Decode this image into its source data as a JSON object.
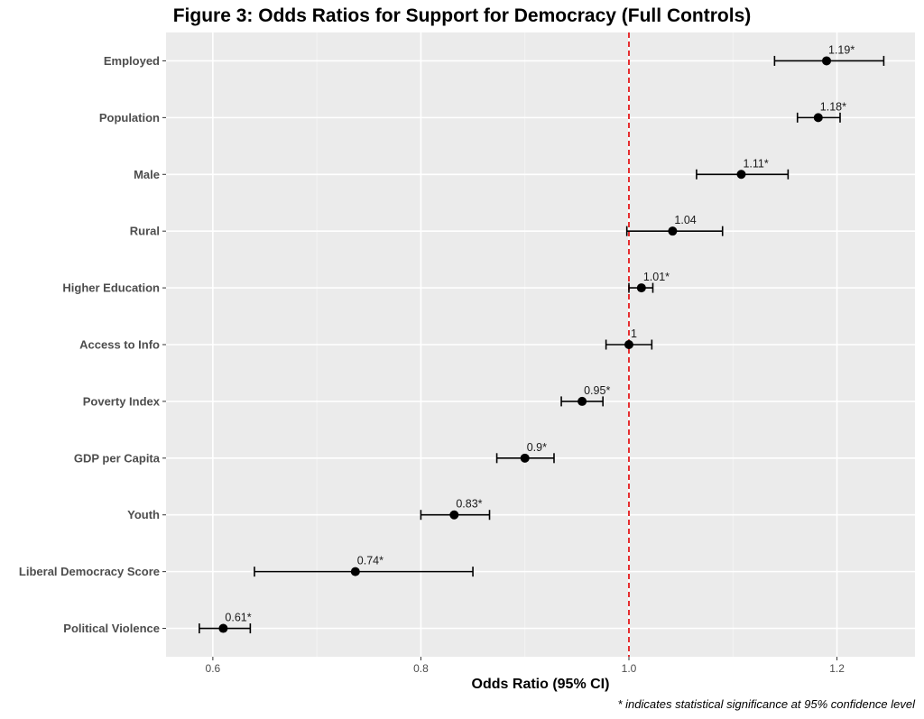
{
  "chart_data": {
    "type": "scatter",
    "subtype": "forest-plot",
    "title": "Figure 3: Odds Ratios for Support for Democracy (Full Controls)",
    "xlabel": "Odds Ratio (95% CI)",
    "ylabel": "",
    "xlim": [
      0.555,
      1.275
    ],
    "xticks": [
      0.6,
      0.8,
      1.0,
      1.2
    ],
    "xtick_labels": [
      "0.6",
      "0.8",
      "1.0",
      "1.2"
    ],
    "reference_line": 1.0,
    "reference_line_color": "#e41a1c",
    "grid": true,
    "panel_background": "#ebebeb",
    "footnote": "* indicates statistical significance at 95% confidence level",
    "categories": [
      "Employed",
      "Population",
      "Male",
      "Rural",
      "Higher Education",
      "Access to Info",
      "Poverty Index",
      "GDP per Capita",
      "Youth",
      "Liberal Democracy Score",
      "Political Violence"
    ],
    "values": [
      1.19,
      1.182,
      1.108,
      1.042,
      1.012,
      1.0,
      0.955,
      0.9,
      0.832,
      0.737,
      0.61
    ],
    "ci_low": [
      1.14,
      1.162,
      1.065,
      0.998,
      1.0,
      0.978,
      0.935,
      0.873,
      0.8,
      0.64,
      0.587
    ],
    "ci_high": [
      1.245,
      1.203,
      1.153,
      1.09,
      1.023,
      1.022,
      0.975,
      0.928,
      0.866,
      0.85,
      0.636
    ],
    "value_labels": [
      "1.19*",
      "1.18*",
      "1.11*",
      "1.04",
      "1.01*",
      "1",
      "0.95*",
      "0.9*",
      "0.83*",
      "0.74*",
      "0.61*"
    ]
  }
}
